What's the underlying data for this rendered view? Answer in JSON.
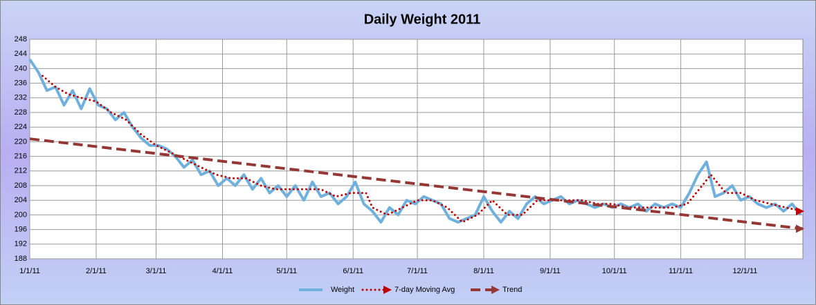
{
  "chart_data": {
    "type": "line",
    "title": "Daily Weight 2011",
    "xlim": [
      "1/1/11",
      "12/28/11"
    ],
    "xticks": [
      "1/1/11",
      "2/1/11",
      "3/1/11",
      "4/1/11",
      "5/1/11",
      "6/1/11",
      "7/1/11",
      "8/1/11",
      "9/1/11",
      "10/1/11",
      "11/1/11",
      "12/1/11"
    ],
    "ylim": [
      188,
      248
    ],
    "yticks": [
      188,
      192,
      196,
      200,
      204,
      208,
      212,
      216,
      220,
      224,
      228,
      232,
      236,
      240,
      244,
      248
    ],
    "grid": true,
    "legend": "bottom",
    "series": [
      {
        "name": "Weight",
        "color": "#6fb0dc",
        "style": "solid",
        "x": [
          "1/1/11",
          "1/5/11",
          "1/9/11",
          "1/13/11",
          "1/17/11",
          "1/21/11",
          "1/25/11",
          "1/29/11",
          "2/2/11",
          "2/6/11",
          "2/10/11",
          "2/14/11",
          "2/18/11",
          "2/22/11",
          "2/26/11",
          "3/2/11",
          "3/6/11",
          "3/10/11",
          "3/14/11",
          "3/18/11",
          "3/22/11",
          "3/26/11",
          "3/30/11",
          "4/3/11",
          "4/7/11",
          "4/11/11",
          "4/15/11",
          "4/19/11",
          "4/23/11",
          "4/27/11",
          "5/1/11",
          "5/5/11",
          "5/9/11",
          "5/13/11",
          "5/17/11",
          "5/21/11",
          "5/25/11",
          "5/29/11",
          "6/2/11",
          "6/6/11",
          "6/10/11",
          "6/14/11",
          "6/18/11",
          "6/22/11",
          "6/26/11",
          "6/30/11",
          "7/4/11",
          "7/8/11",
          "7/12/11",
          "7/16/11",
          "7/20/11",
          "7/24/11",
          "7/28/11",
          "8/1/11",
          "8/5/11",
          "8/9/11",
          "8/13/11",
          "8/17/11",
          "8/21/11",
          "8/25/11",
          "8/29/11",
          "9/2/11",
          "9/6/11",
          "9/10/11",
          "9/14/11",
          "9/18/11",
          "9/22/11",
          "9/26/11",
          "9/30/11",
          "10/4/11",
          "10/8/11",
          "10/12/11",
          "10/16/11",
          "10/20/11",
          "10/24/11",
          "10/28/11",
          "11/1/11",
          "11/5/11",
          "11/9/11",
          "11/13/11",
          "11/17/11",
          "11/21/11",
          "11/25/11",
          "11/29/11",
          "12/3/11",
          "12/7/11",
          "12/11/11",
          "12/15/11",
          "12/19/11",
          "12/23/11",
          "12/27/11"
        ],
        "values": [
          242.5,
          239,
          234,
          235,
          230,
          234,
          229,
          234.5,
          230,
          229,
          226,
          228,
          224,
          221,
          219,
          219,
          218,
          216,
          213,
          215,
          211,
          212,
          208,
          210,
          208,
          211,
          207,
          210,
          206,
          208,
          205,
          208,
          204,
          209,
          205,
          206,
          203,
          205,
          209,
          203,
          201,
          198,
          202,
          200,
          204,
          203,
          205,
          204,
          203,
          199,
          198,
          199,
          200,
          205,
          201,
          198,
          201,
          199,
          203,
          205,
          203,
          204,
          205,
          203,
          204,
          203,
          202,
          203,
          202,
          203,
          202,
          203,
          201,
          203,
          202,
          203,
          202,
          206,
          211,
          214.5,
          205,
          206,
          208,
          204,
          205,
          203,
          202,
          203,
          201,
          203,
          200
        ]
      },
      {
        "name": "7-day Moving Avg",
        "color": "#c00000",
        "style": "dotted",
        "x": [
          "1/7/11",
          "1/13/11",
          "1/19/11",
          "1/25/11",
          "2/1/11",
          "2/8/11",
          "2/15/11",
          "2/22/11",
          "3/1/11",
          "3/8/11",
          "3/15/11",
          "3/22/11",
          "3/29/11",
          "4/5/11",
          "4/12/11",
          "4/19/11",
          "4/26/11",
          "5/3/11",
          "5/10/11",
          "5/17/11",
          "5/24/11",
          "5/31/11",
          "6/7/11",
          "6/10/11",
          "6/17/11",
          "6/24/11",
          "7/1/11",
          "7/8/11",
          "7/15/11",
          "7/22/11",
          "7/29/11",
          "8/5/11",
          "8/12/11",
          "8/19/11",
          "8/26/11",
          "9/2/11",
          "9/9/11",
          "9/16/11",
          "9/23/11",
          "9/30/11",
          "10/7/11",
          "10/14/11",
          "10/21/11",
          "10/28/11",
          "11/4/11",
          "11/11/11",
          "11/15/11",
          "11/22/11",
          "11/29/11",
          "12/6/11",
          "12/13/11",
          "12/20/11",
          "12/28/11"
        ],
        "values": [
          238,
          235,
          233,
          232,
          231,
          228,
          226,
          222,
          219,
          217,
          215,
          213,
          211,
          210,
          210,
          208,
          207,
          207,
          207,
          207,
          205,
          206,
          206,
          202,
          200,
          202,
          204,
          204,
          202,
          198,
          200,
          204,
          200,
          200,
          204,
          204,
          204,
          204,
          203,
          203,
          202,
          202,
          202,
          202,
          203,
          208,
          211,
          206,
          206,
          204,
          203,
          202,
          201
        ]
      },
      {
        "name": "Trend",
        "color": "#953735",
        "style": "dashed",
        "x": [
          "1/1/11",
          "12/28/11"
        ],
        "values": [
          220.8,
          196.2
        ]
      }
    ]
  }
}
